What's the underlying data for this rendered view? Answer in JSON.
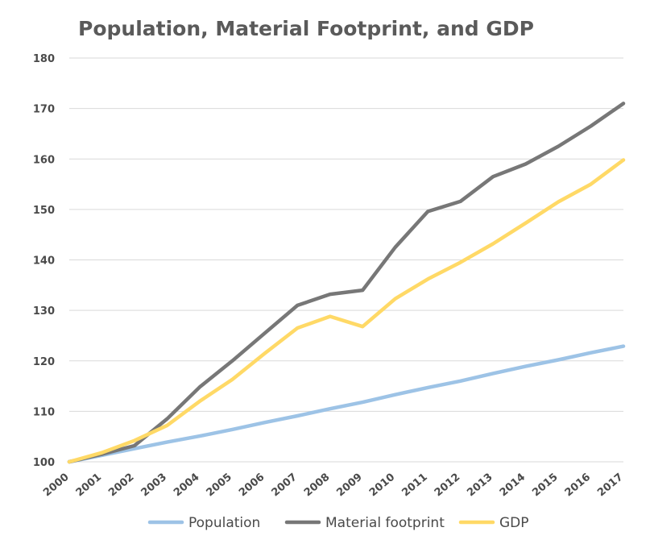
{
  "chart_data": {
    "type": "line",
    "title": "Population, Material Footprint, and GDP",
    "xlabel": "",
    "ylabel": "",
    "ylim": [
      100,
      180
    ],
    "yticks": [
      100,
      110,
      120,
      130,
      140,
      150,
      160,
      170,
      180
    ],
    "grid": true,
    "legend_position": "bottom",
    "x": [
      "2000",
      "2001",
      "2002",
      "2003",
      "2004",
      "2005",
      "2006",
      "2007",
      "2008",
      "2009",
      "2010",
      "2011",
      "2012",
      "2013",
      "2014",
      "2015",
      "2016",
      "2017"
    ],
    "series": [
      {
        "name": "Population",
        "color": "#9dc3e6",
        "values": [
          100,
          101.3,
          102.6,
          103.9,
          105.1,
          106.4,
          107.8,
          109.1,
          110.5,
          111.8,
          113.3,
          114.7,
          116.0,
          117.5,
          118.9,
          120.2,
          121.6,
          122.9
        ]
      },
      {
        "name": "Material footprint",
        "color": "#777777",
        "values": [
          100,
          101.5,
          103.2,
          108.5,
          114.8,
          120.0,
          125.5,
          131.0,
          133.2,
          134.0,
          142.5,
          149.6,
          151.6,
          156.5,
          159.0,
          162.5,
          166.5,
          171.0
        ]
      },
      {
        "name": "GDP",
        "color": "#ffd966",
        "values": [
          100,
          101.8,
          104.2,
          107.2,
          112.0,
          116.3,
          121.5,
          126.5,
          128.8,
          126.8,
          132.3,
          136.2,
          139.5,
          143.2,
          147.3,
          151.5,
          155.0,
          159.8
        ]
      }
    ]
  }
}
